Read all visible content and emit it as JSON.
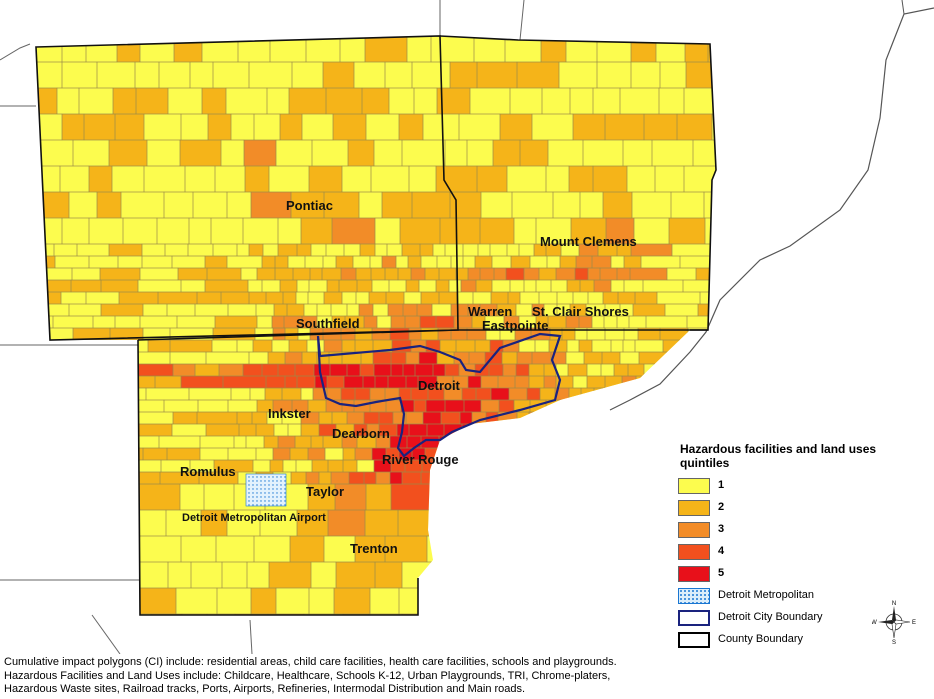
{
  "map": {
    "places": [
      {
        "id": "pontiac",
        "label": "Pontiac"
      },
      {
        "id": "mount-clemens",
        "label": "Mount Clemens"
      },
      {
        "id": "southfield",
        "label": "Southfield"
      },
      {
        "id": "warren",
        "label": "Warren"
      },
      {
        "id": "st-clair-shores",
        "label": "St. Clair Shores"
      },
      {
        "id": "eastpointe",
        "label": "Eastpointe"
      },
      {
        "id": "detroit",
        "label": "Detroit"
      },
      {
        "id": "inkster",
        "label": "Inkster"
      },
      {
        "id": "dearborn",
        "label": "Dearborn"
      },
      {
        "id": "river-rouge",
        "label": "River Rouge"
      },
      {
        "id": "romulus",
        "label": "Romulus"
      },
      {
        "id": "taylor",
        "label": "Taylor"
      },
      {
        "id": "airport",
        "label": "Detroit Metropolitan Airport"
      },
      {
        "id": "trenton",
        "label": "Trenton"
      }
    ],
    "quintile_colors": [
      "#fcfc4e",
      "#f5b419",
      "#f28c28",
      "#f2501e",
      "#e8101a"
    ]
  },
  "legend": {
    "title": "Hazardous facilities and land uses quintiles",
    "items": [
      {
        "label": "1",
        "color": "#fcfc4e",
        "kind": "fill"
      },
      {
        "label": "2",
        "color": "#f5b419",
        "kind": "fill"
      },
      {
        "label": "3",
        "color": "#f28c28",
        "kind": "fill"
      },
      {
        "label": "4",
        "color": "#f2501e",
        "kind": "fill"
      },
      {
        "label": "5",
        "color": "#e8101a",
        "kind": "fill"
      },
      {
        "label": "Detroit Metropolitan",
        "color": "#dceefa",
        "kind": "dots"
      },
      {
        "label": "Detroit City Boundary",
        "color": "#1a237e",
        "kind": "outline"
      },
      {
        "label": "County Boundary",
        "color": "#000000",
        "kind": "outline"
      }
    ]
  },
  "compass": {
    "n": "N",
    "s": "S",
    "e": "E",
    "w": "W"
  },
  "footnotes": [
    "Cumulative impact polygons (CI) include: residential areas, child care facilities, health care facilities, schools and playgrounds.",
    "Hazardous Facilities and Land Uses include: Childcare, Healthcare, Schools K-12, Urban Playgrounds, TRI, Chrome-platers,",
    "Hazardous Waste sites, Railroad tracks, Ports, Airports, Refineries, Intermodal Distribution and Main roads."
  ]
}
